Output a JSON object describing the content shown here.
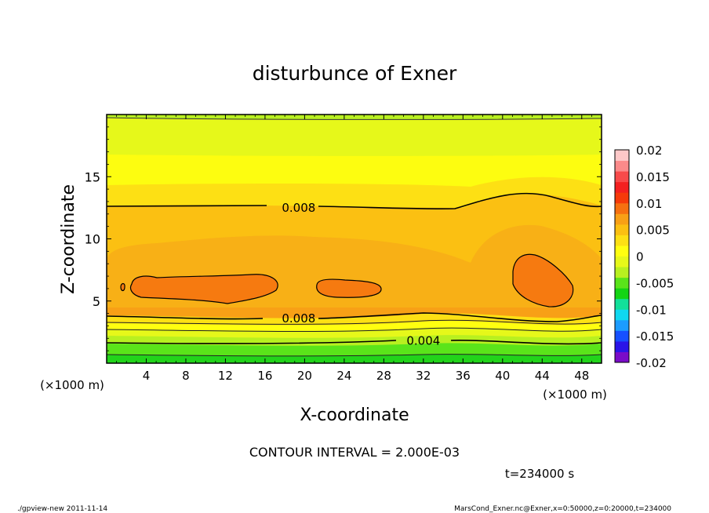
{
  "chart_data": {
    "type": "heatmap",
    "title": "disturbunce of Exner",
    "xlabel": "X-coordinate",
    "ylabel": "Z-coordinate",
    "x_unit_left": "(×1000 m)",
    "x_unit_right": "(×1000 m)",
    "xlim": [
      0,
      50
    ],
    "ylim": [
      0,
      20
    ],
    "x_ticks": [
      4,
      8,
      12,
      16,
      20,
      24,
      28,
      32,
      36,
      40,
      44,
      48
    ],
    "y_ticks": [
      5,
      10,
      15
    ],
    "contour_interval_text": "CONTOUR INTERVAL = 2.000E-03",
    "time_text": "t=234000 s",
    "colorbar": {
      "ticks": [
        "0.02",
        "0.015",
        "0.01",
        "0.005",
        "0",
        "-0.005",
        "-0.01",
        "-0.015",
        "-0.02"
      ],
      "range": [
        -0.02,
        0.02
      ],
      "colors": [
        "#7a0cc8",
        "#2a14e8",
        "#1650ff",
        "#1c9cff",
        "#10d8f0",
        "#12e09a",
        "#14d414",
        "#5ae41a",
        "#b8f020",
        "#e6f81a",
        "#ffff10",
        "#fde014",
        "#fbc012",
        "#f8a016",
        "#f67010",
        "#f63a0a",
        "#f42020",
        "#f84a4a",
        "#fb8a8a",
        "#fdc8c8"
      ]
    },
    "contour_labels": [
      {
        "text": "0.008",
        "x": 19.4,
        "z": 12.5
      },
      {
        "text": "0.008",
        "x": 19.4,
        "z": 3.6
      },
      {
        "text": "0.004",
        "x": 32.0,
        "z": 1.8
      }
    ]
  },
  "footer": {
    "left": "./gpview-new  2011-11-14",
    "right": "MarsCond_Exner.nc@Exner,x=0:50000,z=0:20000,t=234000"
  }
}
